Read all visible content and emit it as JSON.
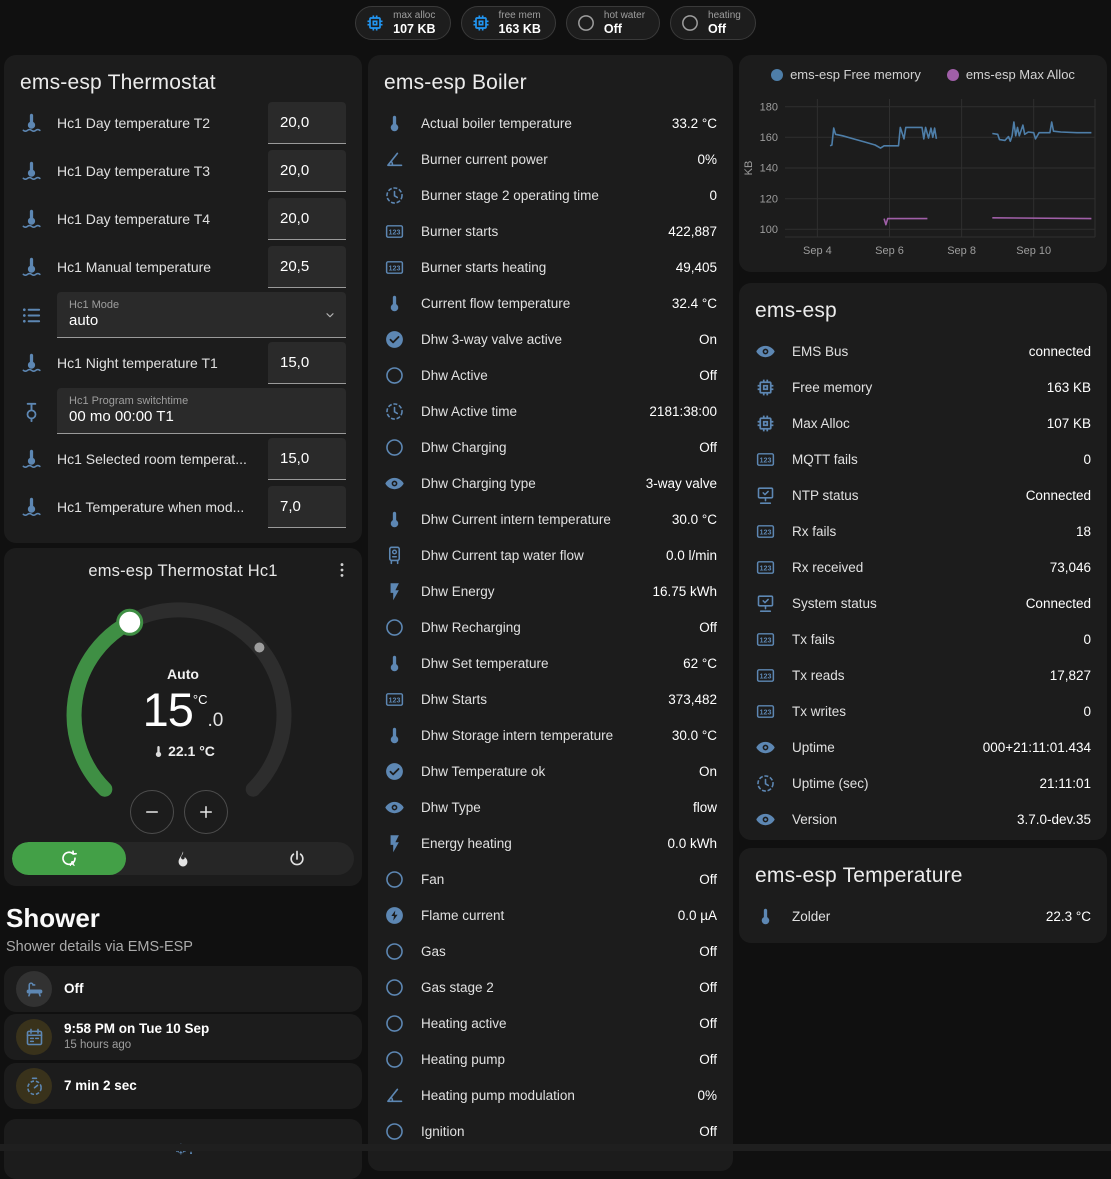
{
  "colors": {
    "icon_blue": "#5d87b3",
    "chip_blue": "#2196f3",
    "chip_gray": "#9e9e9e",
    "green": "#43a047",
    "amber": "#d9a514"
  },
  "header": {
    "chips": [
      {
        "icon": "memory",
        "color": "blue",
        "label": "max alloc",
        "value": "107 KB"
      },
      {
        "icon": "memory",
        "color": "blue",
        "label": "free mem",
        "value": "163 KB"
      },
      {
        "icon": "circle",
        "color": "gray",
        "label": "hot water",
        "value": "Off"
      },
      {
        "icon": "circle",
        "color": "gray",
        "label": "heating",
        "value": "Off"
      }
    ]
  },
  "thermostat_card": {
    "title": "ems-esp Thermostat",
    "rows": [
      {
        "type": "number",
        "icon": "thermometer-water",
        "label": "Hc1 Day temperature T2",
        "value": "20,0"
      },
      {
        "type": "number",
        "icon": "thermometer-water",
        "label": "Hc1 Day temperature T3",
        "value": "20,0"
      },
      {
        "type": "number",
        "icon": "thermometer-water",
        "label": "Hc1 Day temperature T4",
        "value": "20,0"
      },
      {
        "type": "number",
        "icon": "thermometer-water",
        "label": "Hc1 Manual temperature",
        "value": "20,5"
      },
      {
        "type": "select",
        "icon": "format-list",
        "label": "Hc1 Mode",
        "value": "auto"
      },
      {
        "type": "number",
        "icon": "thermometer-water",
        "label": "Hc1 Night temperature T1",
        "value": "15,0"
      },
      {
        "type": "text",
        "icon": "valve",
        "label": "Hc1 Program switchtime",
        "value": "00 mo 00:00 T1"
      },
      {
        "type": "number",
        "icon": "thermometer-water",
        "label": "Hc1 Selected room temperat...",
        "value": "15,0"
      },
      {
        "type": "number",
        "icon": "thermometer-water",
        "label": "Hc1 Temperature when mod...",
        "value": "7,0"
      }
    ]
  },
  "dial_card": {
    "title": "ems-esp Thermostat Hc1",
    "mode_label": "Auto",
    "temp_int": "15",
    "temp_unit": "°C",
    "temp_dec": ".0",
    "current_temp": "22.1 °C"
  },
  "shower": {
    "title": "Shower",
    "subtitle": "Shower details via EMS-ESP",
    "tiles": [
      {
        "icon": "bathtub",
        "style": "gray",
        "label": "Off",
        "sub": ""
      },
      {
        "icon": "calendar",
        "style": "amber",
        "label": "9:58 PM on Tue 10 Sep",
        "sub": "15 hours ago"
      },
      {
        "icon": "timer",
        "style": "amber",
        "label": "7 min 2 sec",
        "sub": ""
      }
    ],
    "alert_icon": "snowflake-alert"
  },
  "boiler_card": {
    "title": "ems-esp Boiler",
    "rows": [
      {
        "icon": "thermometer",
        "label": "Actual boiler temperature",
        "value": "33.2 °C"
      },
      {
        "icon": "angle",
        "label": "Burner current power",
        "value": "0%"
      },
      {
        "icon": "clock",
        "label": "Burner stage 2 operating time",
        "value": "0"
      },
      {
        "icon": "counter",
        "label": "Burner starts",
        "value": "422,887"
      },
      {
        "icon": "counter",
        "label": "Burner starts heating",
        "value": "49,405"
      },
      {
        "icon": "thermometer",
        "label": "Current flow temperature",
        "value": "32.4 °C"
      },
      {
        "icon": "check-circle",
        "label": "Dhw 3-way valve active",
        "value": "On"
      },
      {
        "icon": "circle",
        "label": "Dhw Active",
        "value": "Off"
      },
      {
        "icon": "clock",
        "label": "Dhw Active time",
        "value": "2181:38:00"
      },
      {
        "icon": "circle",
        "label": "Dhw Charging",
        "value": "Off"
      },
      {
        "icon": "eye",
        "label": "Dhw Charging type",
        "value": "3-way valve"
      },
      {
        "icon": "thermometer",
        "label": "Dhw Current intern temperature",
        "value": "30.0 °C"
      },
      {
        "icon": "water-boiler",
        "label": "Dhw Current tap water flow",
        "value": "0.0 l/min"
      },
      {
        "icon": "flash",
        "label": "Dhw Energy",
        "value": "16.75 kWh"
      },
      {
        "icon": "circle",
        "label": "Dhw Recharging",
        "value": "Off"
      },
      {
        "icon": "thermometer",
        "label": "Dhw Set temperature",
        "value": "62 °C"
      },
      {
        "icon": "counter",
        "label": "Dhw Starts",
        "value": "373,482"
      },
      {
        "icon": "thermometer",
        "label": "Dhw Storage intern temperature",
        "value": "30.0 °C"
      },
      {
        "icon": "check-circle",
        "label": "Dhw Temperature ok",
        "value": "On"
      },
      {
        "icon": "eye",
        "label": "Dhw Type",
        "value": "flow"
      },
      {
        "icon": "flash",
        "label": "Energy heating",
        "value": "0.0 kWh"
      },
      {
        "icon": "circle",
        "label": "Fan",
        "value": "Off"
      },
      {
        "icon": "flash-circle",
        "label": "Flame current",
        "value": "0.0 µA"
      },
      {
        "icon": "circle",
        "label": "Gas",
        "value": "Off"
      },
      {
        "icon": "circle",
        "label": "Gas stage 2",
        "value": "Off"
      },
      {
        "icon": "circle",
        "label": "Heating active",
        "value": "Off"
      },
      {
        "icon": "circle",
        "label": "Heating pump",
        "value": "Off"
      },
      {
        "icon": "angle",
        "label": "Heating pump modulation",
        "value": "0%"
      },
      {
        "icon": "circle",
        "label": "Ignition",
        "value": "Off"
      }
    ]
  },
  "emsesp_card": {
    "title": "ems-esp",
    "rows": [
      {
        "icon": "eye",
        "label": "EMS Bus",
        "value": "connected"
      },
      {
        "icon": "memory",
        "label": "Free memory",
        "value": "163 KB"
      },
      {
        "icon": "memory",
        "label": "Max Alloc",
        "value": "107 KB"
      },
      {
        "icon": "counter",
        "label": "MQTT fails",
        "value": "0"
      },
      {
        "icon": "lan-check",
        "label": "NTP status",
        "value": "Connected"
      },
      {
        "icon": "counter",
        "label": "Rx fails",
        "value": "18"
      },
      {
        "icon": "counter",
        "label": "Rx received",
        "value": "73,046"
      },
      {
        "icon": "lan-check",
        "label": "System status",
        "value": "Connected"
      },
      {
        "icon": "counter",
        "label": "Tx fails",
        "value": "0"
      },
      {
        "icon": "counter",
        "label": "Tx reads",
        "value": "17,827"
      },
      {
        "icon": "counter",
        "label": "Tx writes",
        "value": "0"
      },
      {
        "icon": "eye",
        "label": "Uptime",
        "value": "000+21:11:01.434"
      },
      {
        "icon": "clock",
        "label": "Uptime (sec)",
        "value": "21:11:01"
      },
      {
        "icon": "eye",
        "label": "Version",
        "value": "3.7.0-dev.35"
      }
    ]
  },
  "temperature_card": {
    "title": "ems-esp Temperature",
    "rows": [
      {
        "icon": "thermometer",
        "label": "Zolder",
        "value": "22.3 °C"
      }
    ]
  },
  "chart_data": {
    "type": "line",
    "title": "",
    "ylabel": "KB",
    "ylim": [
      95,
      185
    ],
    "yticks": [
      180,
      160,
      140,
      120,
      100
    ],
    "xticks": [
      "Sep 4",
      "Sep 6",
      "Sep 8",
      "Sep 10"
    ],
    "xtick_days": [
      4,
      6,
      8,
      10
    ],
    "xlim": [
      3.1,
      11.7
    ],
    "grid": true,
    "legend_position": "top",
    "series": [
      {
        "name": "ems-esp Free memory",
        "color": "#4e7ea8",
        "points": [
          [
            4.35,
            154.5
          ],
          [
            4.4,
            155
          ],
          [
            4.45,
            166
          ],
          [
            4.5,
            162
          ],
          [
            4.7,
            161
          ],
          [
            5.0,
            159
          ],
          [
            5.3,
            157
          ],
          [
            5.6,
            155
          ],
          [
            5.75,
            153
          ],
          [
            5.85,
            154.5
          ],
          [
            6.25,
            154.5
          ],
          [
            6.3,
            166.5
          ],
          [
            6.4,
            159
          ],
          [
            6.45,
            166.5
          ],
          [
            6.9,
            166.5
          ],
          [
            6.95,
            159
          ],
          [
            7.0,
            166.5
          ],
          [
            7.08,
            159.5
          ],
          [
            7.15,
            166
          ],
          [
            7.2,
            160
          ],
          [
            7.25,
            166
          ],
          [
            7.3,
            159
          ],
          null,
          [
            8.85,
            162.5
          ],
          [
            9.0,
            162
          ],
          [
            9.05,
            158.5
          ],
          [
            9.2,
            158
          ],
          [
            9.3,
            160.5
          ],
          [
            9.35,
            157.5
          ],
          [
            9.4,
            161
          ],
          [
            9.45,
            170
          ],
          [
            9.5,
            161
          ],
          [
            9.55,
            166.5
          ],
          [
            9.6,
            161
          ],
          [
            9.7,
            168
          ],
          [
            9.75,
            162
          ],
          [
            9.85,
            163.5
          ],
          [
            10.0,
            163
          ],
          [
            10.05,
            159
          ],
          [
            10.15,
            163
          ],
          [
            10.45,
            163
          ],
          [
            10.5,
            170
          ],
          [
            10.55,
            164
          ],
          [
            10.75,
            163.5
          ],
          [
            11.2,
            163
          ],
          [
            11.6,
            163
          ]
        ]
      },
      {
        "name": "ems-esp Max Alloc",
        "color": "#a05fa8",
        "points": [
          [
            5.85,
            107
          ],
          [
            5.9,
            103
          ],
          [
            5.95,
            107
          ],
          [
            7.05,
            107
          ],
          null,
          [
            8.85,
            107.5
          ],
          [
            11.6,
            107
          ]
        ]
      }
    ]
  }
}
